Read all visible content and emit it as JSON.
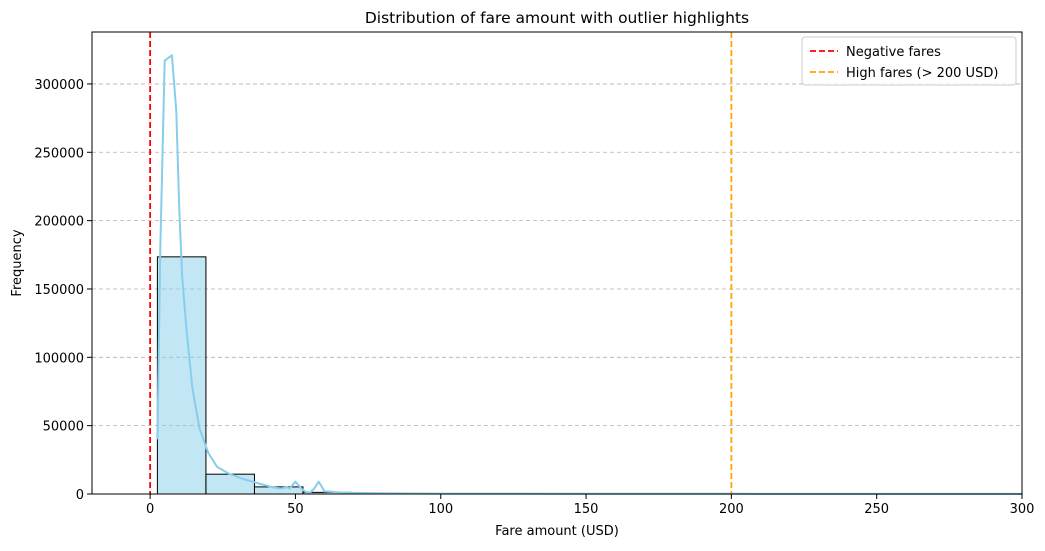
{
  "chart_data": {
    "type": "bar",
    "title": "Distribution of fare amount with outlier highlights",
    "xlabel": "Fare amount (USD)",
    "ylabel": "Frequency",
    "xlim": [
      -20,
      300
    ],
    "ylim": [
      0,
      338000
    ],
    "xticks": [
      0,
      50,
      100,
      150,
      200,
      250,
      300
    ],
    "yticks": [
      0,
      50000,
      100000,
      150000,
      200000,
      250000,
      300000
    ],
    "grid": "y-dashed",
    "legend_position": "upper right",
    "histogram": {
      "color": "#87CEEB",
      "edge_color": "#000000",
      "bins": [
        {
          "x0": 2.5,
          "x1": 19.2,
          "count": 173500
        },
        {
          "x0": 19.2,
          "x1": 35.9,
          "count": 14500
        },
        {
          "x0": 35.9,
          "x1": 52.6,
          "count": 5200
        },
        {
          "x0": 52.6,
          "x1": 69.3,
          "count": 1200
        },
        {
          "x0": 69.3,
          "x1": 86.0,
          "count": 500
        },
        {
          "x0": 86.0,
          "x1": 102.7,
          "count": 200
        },
        {
          "x0": 102.7,
          "x1": 119.4,
          "count": 100
        }
      ]
    },
    "kde": {
      "color": "#87CEEB",
      "x": [
        2.5,
        3.5,
        5,
        7.5,
        9,
        10,
        11,
        12.5,
        14.5,
        17,
        20,
        23,
        27,
        32,
        37,
        42,
        45,
        47,
        48,
        50,
        52,
        53.5,
        55,
        56.5,
        58,
        60,
        65,
        70,
        80,
        100,
        150,
        200,
        250,
        300
      ],
      "y": [
        40000,
        180000,
        317000,
        321000,
        280000,
        210000,
        160000,
        120000,
        78000,
        48000,
        30000,
        20000,
        15000,
        11000,
        8000,
        5000,
        4000,
        5000,
        4000,
        9000,
        4000,
        1500,
        1000,
        4000,
        9000,
        2000,
        1200,
        800,
        500,
        300,
        200,
        150,
        100,
        100
      ]
    },
    "reference_lines": [
      {
        "name": "Negative fares",
        "x": 0,
        "color": "#FF0000"
      },
      {
        "name": "High fares (> 200 USD)",
        "x": 200,
        "color": "#FFA500"
      }
    ]
  }
}
